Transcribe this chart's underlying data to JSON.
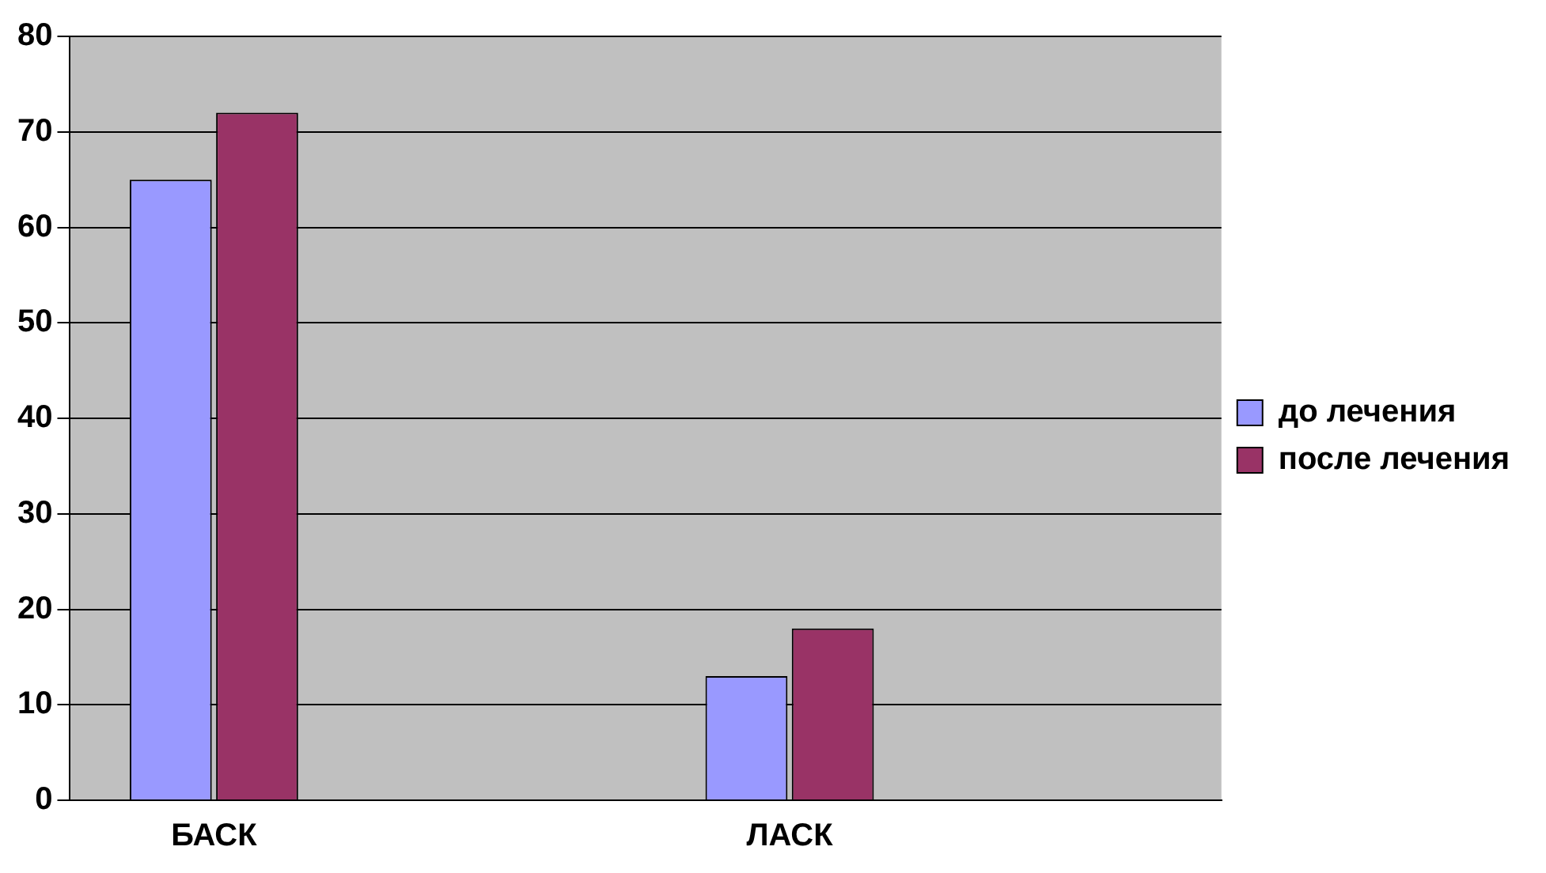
{
  "chart_data": {
    "type": "bar",
    "categories": [
      "БАСК",
      null,
      "ЛАСК",
      null
    ],
    "series": [
      {
        "name": "до лечения",
        "color": "#9999ff",
        "values": [
          65,
          null,
          13,
          null
        ]
      },
      {
        "name": "после лечения",
        "color": "#993366",
        "values": [
          72,
          null,
          18,
          null
        ]
      }
    ],
    "ylim": [
      0,
      80
    ],
    "yticks": [
      0,
      10,
      20,
      30,
      40,
      50,
      60,
      70,
      80
    ],
    "grid": "y",
    "legend": "right"
  }
}
